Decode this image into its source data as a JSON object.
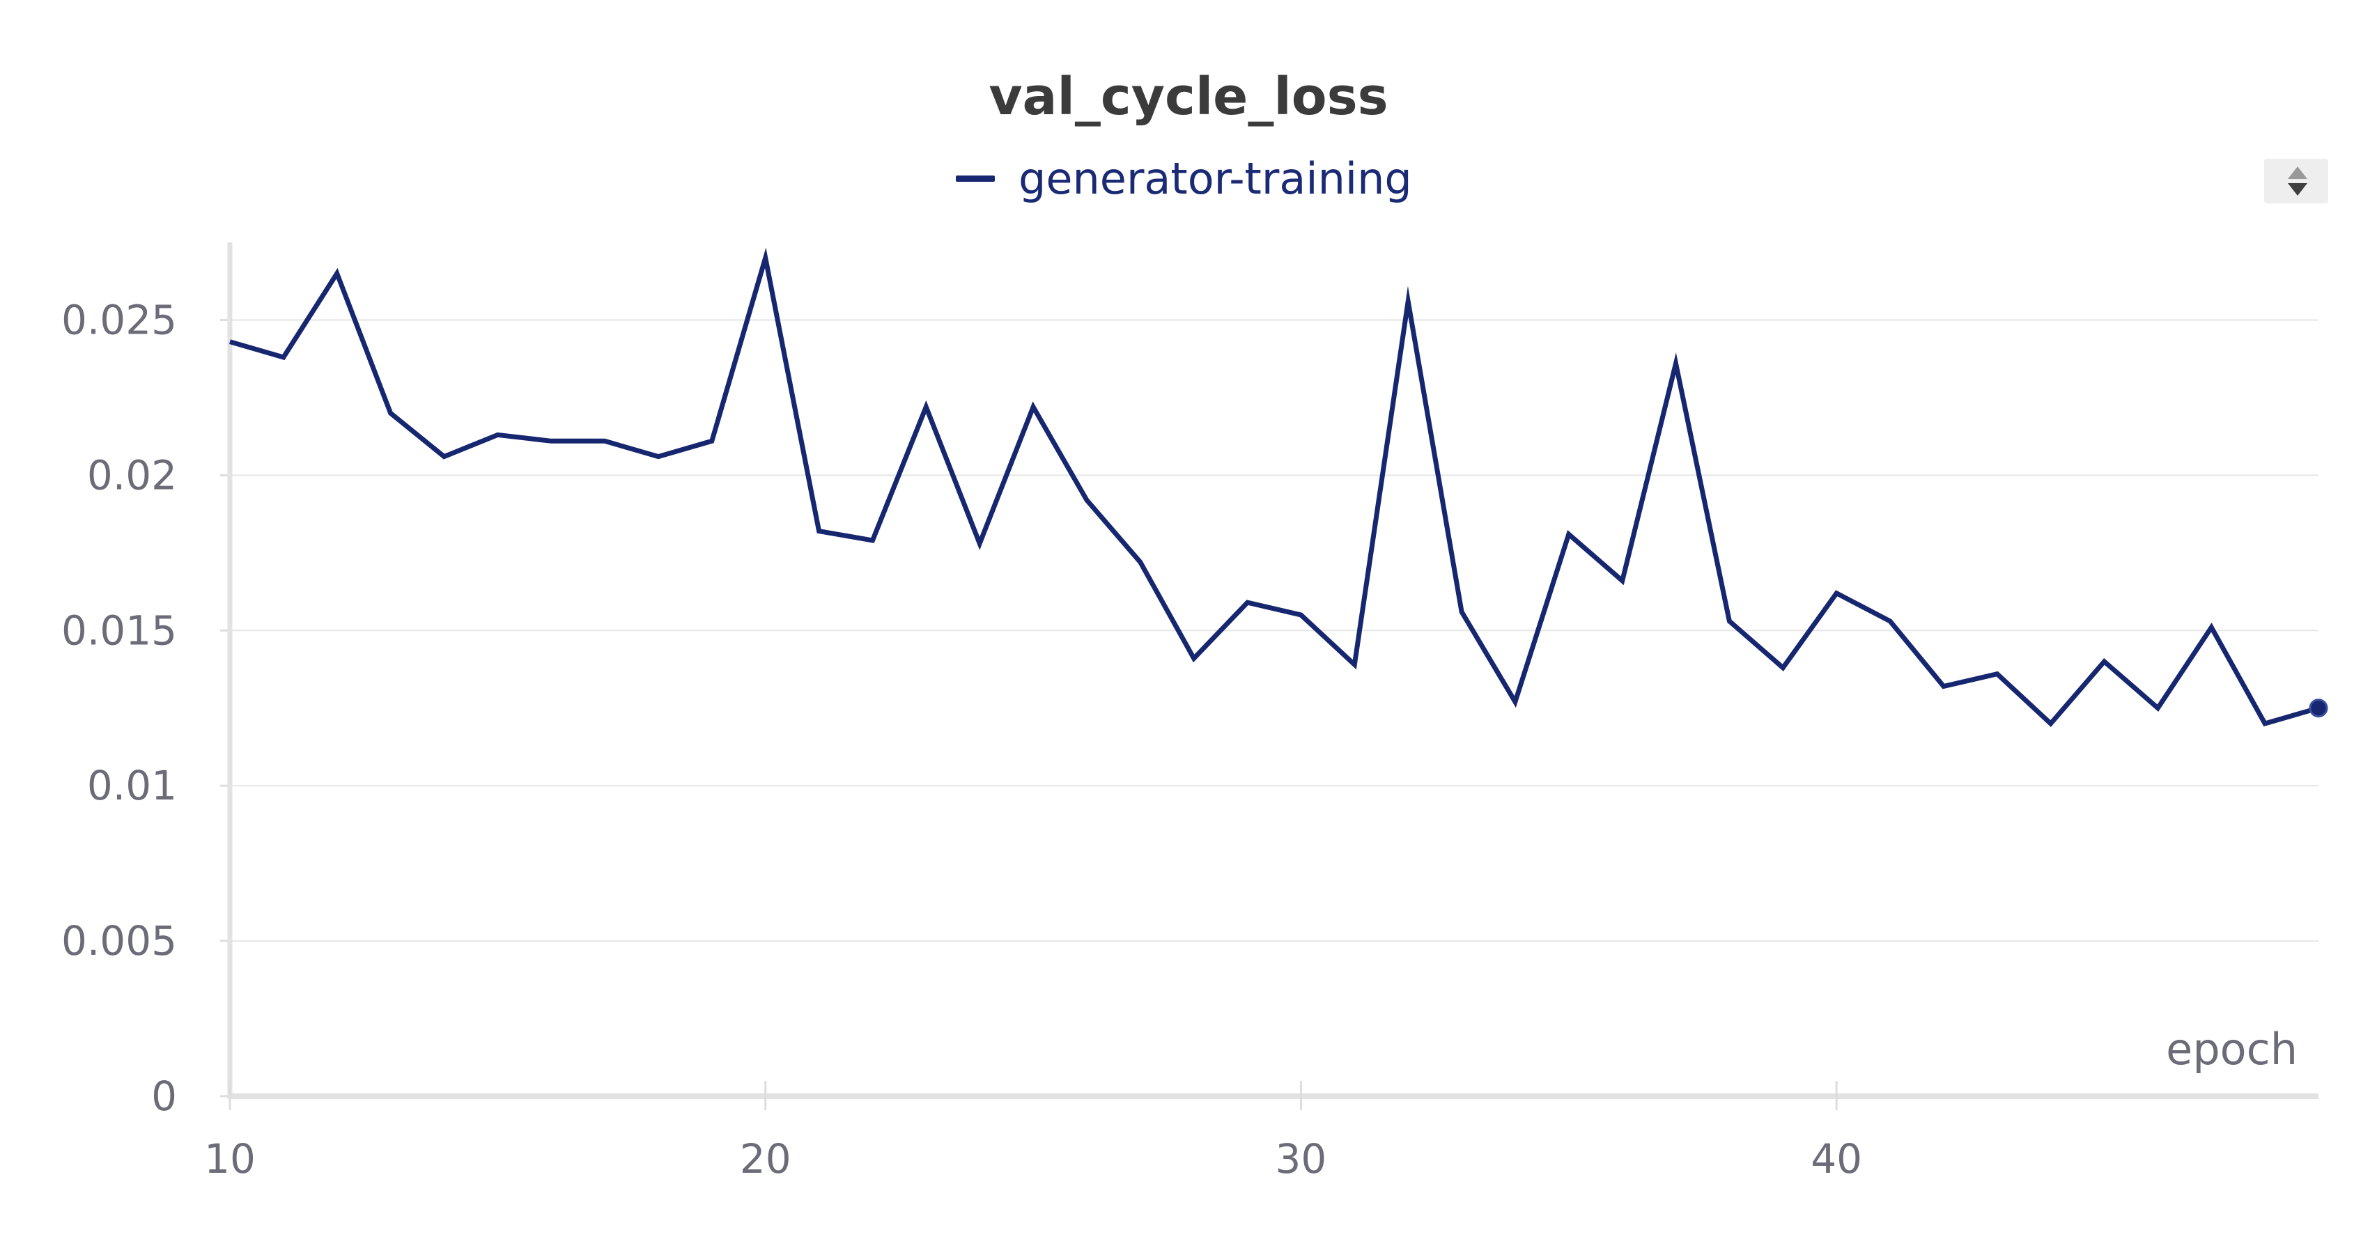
{
  "chart_data": {
    "type": "line",
    "title": "val_cycle_loss",
    "xlabel": "epoch",
    "ylabel": "",
    "xlim": [
      10,
      49
    ],
    "ylim": [
      0,
      0.0275
    ],
    "x_ticks": [
      10,
      20,
      30,
      40
    ],
    "x_tick_labels": [
      "10",
      "20",
      "30",
      "40"
    ],
    "y_ticks": [
      0,
      0.005,
      0.01,
      0.015,
      0.02,
      0.025
    ],
    "y_tick_labels": [
      "0",
      "0.005",
      "0.01",
      "0.015",
      "0.02",
      "0.025"
    ],
    "grid": true,
    "legend_position": "top-center",
    "series": [
      {
        "name": "generator-training",
        "color": "#162770",
        "x": [
          10,
          11,
          12,
          13,
          14,
          15,
          16,
          17,
          18,
          19,
          20,
          21,
          22,
          23,
          24,
          25,
          26,
          27,
          28,
          29,
          30,
          31,
          32,
          33,
          34,
          35,
          36,
          37,
          38,
          39,
          40,
          41,
          42,
          43,
          44,
          45,
          46,
          47,
          48,
          49
        ],
        "values": [
          0.0243,
          0.0238,
          0.0265,
          0.022,
          0.0206,
          0.0213,
          0.0211,
          0.0211,
          0.0206,
          0.0211,
          0.027,
          0.0182,
          0.0179,
          0.0222,
          0.0178,
          0.0222,
          0.0192,
          0.0172,
          0.0141,
          0.0159,
          0.0155,
          0.0139,
          0.0256,
          0.0156,
          0.0127,
          0.0181,
          0.0166,
          0.0236,
          0.0153,
          0.0138,
          0.0162,
          0.0153,
          0.0132,
          0.0136,
          0.012,
          0.014,
          0.0125,
          0.0151,
          0.012,
          0.0125
        ]
      }
    ]
  },
  "ui": {
    "sort_icon": "sort-arrows-icon"
  }
}
